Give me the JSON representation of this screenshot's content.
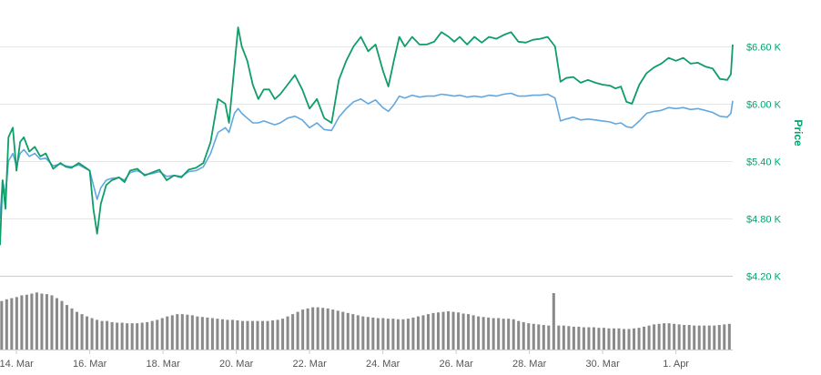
{
  "chart_data": {
    "type": "line",
    "ylabel": "Price",
    "y_ticks": [
      "$4.20 K",
      "$4.80 K",
      "$5.40 K",
      "$6.00 K",
      "$6.60 K"
    ],
    "y_tick_values": [
      4200,
      4800,
      5400,
      6000,
      6600
    ],
    "ylim": [
      4200,
      6800
    ],
    "x_ticks": [
      "14. Mar",
      "16. Mar",
      "18. Mar",
      "20. Mar",
      "22. Mar",
      "24. Mar",
      "26. Mar",
      "28. Mar",
      "30. Mar",
      "1. Apr"
    ],
    "x_tick_values": [
      13.0,
      15.0,
      17.0,
      19.0,
      21.0,
      23.0,
      25.0,
      27.0,
      29.0,
      31.0
    ],
    "xlim": [
      12.55,
      32.55
    ],
    "grid": true,
    "legend": "none",
    "colors": {
      "series_green": "#0f9d68",
      "series_blue": "#62a8e0",
      "volume": "#8a8a8a",
      "axis_text": "#00a36c"
    },
    "series": [
      {
        "color": "#0f9d68",
        "x": [
          12.55,
          12.62,
          12.7,
          12.78,
          12.9,
          13.0,
          13.1,
          13.2,
          13.35,
          13.5,
          13.65,
          13.8,
          14.0,
          14.2,
          14.35,
          14.5,
          14.7,
          14.85,
          15.0,
          15.1,
          15.2,
          15.3,
          15.45,
          15.6,
          15.8,
          15.95,
          16.1,
          16.3,
          16.5,
          16.7,
          16.9,
          17.1,
          17.3,
          17.5,
          17.7,
          17.9,
          18.1,
          18.3,
          18.5,
          18.7,
          18.8,
          18.95,
          19.05,
          19.15,
          19.3,
          19.45,
          19.6,
          19.75,
          19.9,
          20.05,
          20.2,
          20.4,
          20.6,
          20.8,
          21.0,
          21.2,
          21.4,
          21.6,
          21.8,
          22.0,
          22.2,
          22.4,
          22.6,
          22.8,
          23.0,
          23.15,
          23.3,
          23.45,
          23.6,
          23.8,
          24.0,
          24.2,
          24.4,
          24.6,
          24.8,
          24.95,
          25.1,
          25.3,
          25.5,
          25.7,
          25.9,
          26.1,
          26.3,
          26.5,
          26.7,
          26.9,
          27.1,
          27.3,
          27.5,
          27.7,
          27.85,
          28.0,
          28.2,
          28.4,
          28.6,
          28.8,
          29.0,
          29.2,
          29.35,
          29.5,
          29.65,
          29.8,
          30.0,
          30.2,
          30.4,
          30.6,
          30.8,
          31.0,
          31.2,
          31.4,
          31.6,
          31.8,
          32.0,
          32.2,
          32.4,
          32.5,
          32.55
        ],
        "values": [
          4520,
          5200,
          4900,
          5650,
          5750,
          5300,
          5600,
          5650,
          5500,
          5550,
          5450,
          5480,
          5320,
          5380,
          5340,
          5330,
          5380,
          5340,
          5300,
          4900,
          4640,
          4950,
          5150,
          5200,
          5230,
          5180,
          5300,
          5320,
          5250,
          5280,
          5310,
          5200,
          5250,
          5230,
          5310,
          5330,
          5380,
          5600,
          6050,
          6000,
          5800,
          6400,
          6800,
          6600,
          6450,
          6200,
          6050,
          6150,
          6150,
          6050,
          6100,
          6200,
          6300,
          6150,
          5950,
          6050,
          5850,
          5800,
          6250,
          6450,
          6600,
          6700,
          6550,
          6620,
          6350,
          6180,
          6450,
          6700,
          6600,
          6700,
          6620,
          6620,
          6650,
          6750,
          6700,
          6650,
          6700,
          6620,
          6700,
          6640,
          6700,
          6680,
          6720,
          6750,
          6650,
          6640,
          6670,
          6680,
          6700,
          6600,
          6230,
          6270,
          6280,
          6220,
          6250,
          6220,
          6200,
          6190,
          6160,
          6180,
          6020,
          6000,
          6200,
          6320,
          6380,
          6420,
          6480,
          6450,
          6480,
          6420,
          6430,
          6390,
          6370,
          6260,
          6250,
          6310,
          6620
        ]
      },
      {
        "color": "#62a8e0",
        "x": [
          12.55,
          12.62,
          12.7,
          12.78,
          12.9,
          13.0,
          13.1,
          13.2,
          13.35,
          13.5,
          13.65,
          13.8,
          14.0,
          14.2,
          14.35,
          14.5,
          14.7,
          14.85,
          15.0,
          15.1,
          15.2,
          15.3,
          15.45,
          15.6,
          15.8,
          15.95,
          16.1,
          16.3,
          16.5,
          16.7,
          16.9,
          17.1,
          17.3,
          17.5,
          17.7,
          17.9,
          18.1,
          18.3,
          18.5,
          18.7,
          18.8,
          18.95,
          19.05,
          19.15,
          19.3,
          19.45,
          19.6,
          19.75,
          19.9,
          20.05,
          20.2,
          20.4,
          20.6,
          20.8,
          21.0,
          21.2,
          21.4,
          21.6,
          21.8,
          22.0,
          22.2,
          22.4,
          22.6,
          22.8,
          23.0,
          23.15,
          23.3,
          23.45,
          23.6,
          23.8,
          24.0,
          24.2,
          24.4,
          24.6,
          24.8,
          24.95,
          25.1,
          25.3,
          25.5,
          25.7,
          25.9,
          26.1,
          26.3,
          26.5,
          26.7,
          26.9,
          27.1,
          27.3,
          27.5,
          27.7,
          27.85,
          28.0,
          28.2,
          28.4,
          28.6,
          28.8,
          29.0,
          29.2,
          29.35,
          29.5,
          29.65,
          29.8,
          30.0,
          30.2,
          30.4,
          30.6,
          30.8,
          31.0,
          31.2,
          31.4,
          31.6,
          31.8,
          32.0,
          32.2,
          32.4,
          32.5,
          32.55
        ],
        "values": [
          4800,
          5200,
          5050,
          5400,
          5480,
          5350,
          5480,
          5520,
          5450,
          5480,
          5420,
          5430,
          5350,
          5370,
          5350,
          5340,
          5360,
          5330,
          5300,
          5150,
          5000,
          5120,
          5200,
          5220,
          5230,
          5200,
          5280,
          5300,
          5260,
          5270,
          5290,
          5240,
          5250,
          5240,
          5290,
          5300,
          5340,
          5480,
          5700,
          5750,
          5700,
          5900,
          5950,
          5900,
          5850,
          5800,
          5800,
          5820,
          5800,
          5780,
          5800,
          5850,
          5870,
          5830,
          5750,
          5800,
          5730,
          5720,
          5860,
          5950,
          6020,
          6050,
          6000,
          6040,
          5960,
          5920,
          5990,
          6080,
          6060,
          6090,
          6070,
          6080,
          6080,
          6100,
          6090,
          6080,
          6090,
          6070,
          6080,
          6070,
          6090,
          6080,
          6100,
          6110,
          6080,
          6080,
          6090,
          6090,
          6100,
          6060,
          5820,
          5840,
          5860,
          5830,
          5840,
          5830,
          5820,
          5810,
          5790,
          5800,
          5760,
          5750,
          5820,
          5900,
          5920,
          5930,
          5960,
          5950,
          5960,
          5940,
          5950,
          5930,
          5910,
          5870,
          5860,
          5900,
          6030
        ]
      }
    ],
    "volume": [
      0.85,
      0.88,
      0.9,
      0.92,
      0.95,
      0.96,
      0.98,
      1.0,
      0.98,
      0.97,
      0.95,
      0.9,
      0.85,
      0.78,
      0.72,
      0.66,
      0.62,
      0.58,
      0.55,
      0.52,
      0.5,
      0.5,
      0.48,
      0.47,
      0.47,
      0.46,
      0.46,
      0.46,
      0.47,
      0.48,
      0.5,
      0.52,
      0.55,
      0.58,
      0.6,
      0.62,
      0.62,
      0.61,
      0.6,
      0.58,
      0.57,
      0.56,
      0.55,
      0.54,
      0.53,
      0.52,
      0.52,
      0.51,
      0.5,
      0.5,
      0.5,
      0.5,
      0.5,
      0.5,
      0.51,
      0.52,
      0.54,
      0.58,
      0.62,
      0.66,
      0.7,
      0.72,
      0.74,
      0.74,
      0.73,
      0.72,
      0.7,
      0.68,
      0.66,
      0.64,
      0.62,
      0.6,
      0.58,
      0.57,
      0.56,
      0.55,
      0.55,
      0.54,
      0.54,
      0.53,
      0.53,
      0.54,
      0.56,
      0.58,
      0.6,
      0.62,
      0.64,
      0.65,
      0.66,
      0.67,
      0.66,
      0.65,
      0.63,
      0.62,
      0.6,
      0.58,
      0.57,
      0.56,
      0.55,
      0.55,
      0.54,
      0.54,
      0.53,
      0.5,
      0.48,
      0.46,
      0.45,
      0.44,
      0.43,
      0.42,
      1.0,
      0.42,
      0.42,
      0.41,
      0.4,
      0.4,
      0.39,
      0.39,
      0.39,
      0.38,
      0.38,
      0.37,
      0.37,
      0.37,
      0.36,
      0.36,
      0.37,
      0.38,
      0.4,
      0.42,
      0.44,
      0.45,
      0.46,
      0.46,
      0.45,
      0.44,
      0.43,
      0.43,
      0.42,
      0.42,
      0.42,
      0.42,
      0.42,
      0.43,
      0.44,
      0.45
    ]
  }
}
